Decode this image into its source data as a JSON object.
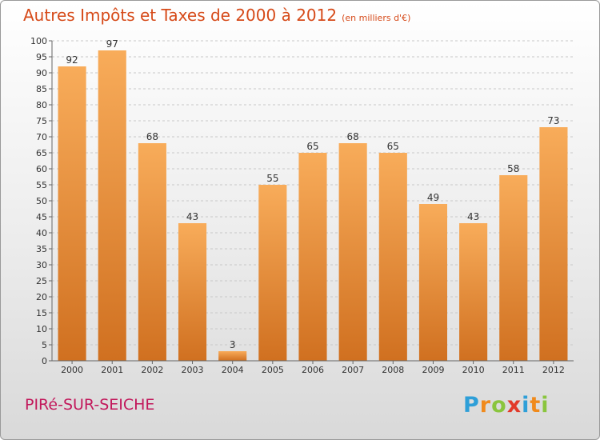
{
  "title": "Autres Impôts et Taxes de 2000 à 2012",
  "subtitle": "(en milliers d'€)",
  "commune": "PIRé-SUR-SEICHE",
  "logo": {
    "letters": [
      "P",
      "r",
      "o",
      "x",
      "i",
      "t",
      "i"
    ],
    "colors": [
      "#2e9fd8",
      "#f08a1c",
      "#8ac53e",
      "#e23a2a",
      "#2e9fd8",
      "#f08a1c",
      "#8ac53e"
    ]
  },
  "colors": {
    "bar_top": "#f8ac5a",
    "bar_bottom": "#d07020",
    "title": "#d64a19",
    "commune": "#c2185b"
  },
  "chart_data": {
    "type": "bar",
    "categories": [
      "2000",
      "2001",
      "2002",
      "2003",
      "2004",
      "2005",
      "2006",
      "2007",
      "2008",
      "2009",
      "2010",
      "2011",
      "2012"
    ],
    "values": [
      92,
      97,
      68,
      43,
      3,
      55,
      65,
      68,
      65,
      49,
      43,
      58,
      73
    ],
    "yticks": [
      0,
      5,
      10,
      15,
      20,
      25,
      30,
      35,
      40,
      45,
      50,
      55,
      60,
      65,
      70,
      75,
      80,
      85,
      90,
      95,
      100
    ],
    "ylim": [
      0,
      100
    ],
    "grid": "horizontal dashed",
    "legend": "none"
  }
}
